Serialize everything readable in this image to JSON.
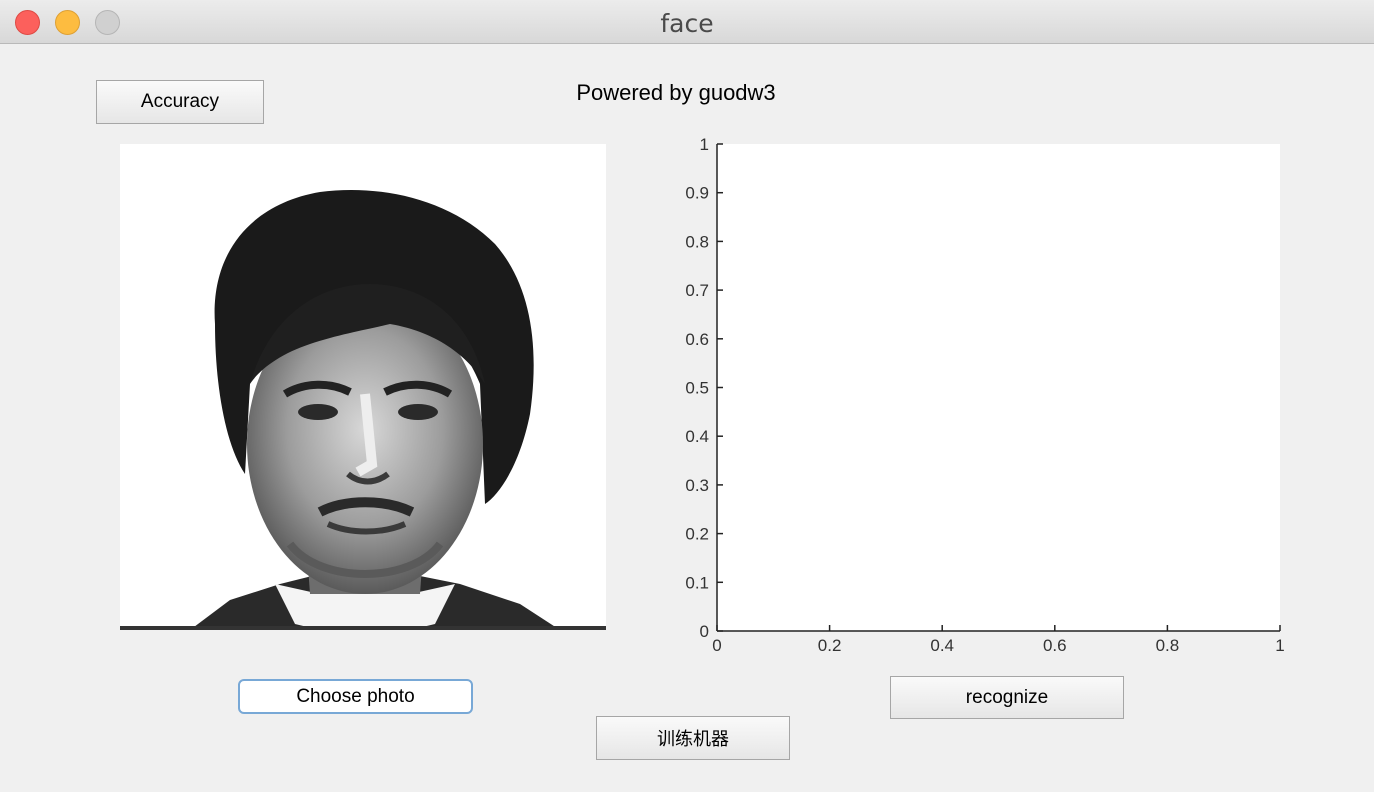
{
  "window": {
    "title": "face"
  },
  "header": {
    "powered_by": "Powered by guodw3"
  },
  "buttons": {
    "accuracy_label": "Accuracy",
    "choose_photo_label": "Choose photo",
    "recognize_label": "recognize",
    "train_label": "训练机器"
  },
  "photo": {
    "icon": "face-photo",
    "description_kind": "grayscale face image"
  },
  "chart_data": {
    "type": "line",
    "series": [],
    "xlim": [
      0,
      1
    ],
    "ylim": [
      0,
      1
    ],
    "xticks": [
      "0",
      "0.2",
      "0.4",
      "0.6",
      "0.8",
      "1"
    ],
    "yticks": [
      "0",
      "0.1",
      "0.2",
      "0.3",
      "0.4",
      "0.5",
      "0.6",
      "0.7",
      "0.8",
      "0.9",
      "1"
    ],
    "grid": false,
    "title": "",
    "xlabel": "",
    "ylabel": ""
  }
}
